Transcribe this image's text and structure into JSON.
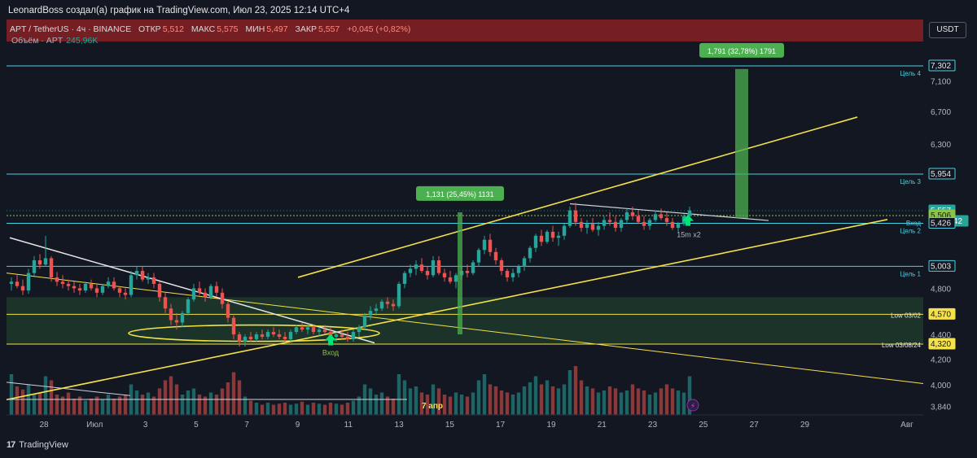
{
  "header": {
    "publisher_line": "LeonardBoss создал(а) график на TradingView.com, Июл 23, 2025 12:14 UTC+4"
  },
  "symbol": {
    "name": "APT / TetherUS · 4ч · BINANCE",
    "open_label": "ОТКР",
    "open": "5,512",
    "high_label": "МАКС",
    "high": "5,575",
    "low_label": "МИН",
    "low": "5,497",
    "close_label": "ЗАКР",
    "close": "5,557",
    "change": "+0,045 (+0,82%)"
  },
  "volume": {
    "label": "Объём · APT",
    "value": "245,96K"
  },
  "currency_button": "USDT",
  "footer": {
    "brand": "TradingView",
    "logo_glyph": "17"
  },
  "colors": {
    "background": "#131722",
    "bull": "#26a69a",
    "bear": "#ef5350",
    "header_band": "#7a1f24",
    "level_line": "#4dd0e1",
    "trend_yellow": "#f5e14a",
    "zone_green": "#1e3b2a",
    "target_box": "#4caf50"
  },
  "chart_data": {
    "type": "candlestick",
    "x_tick_labels": [
      "28",
      "Июл",
      "3",
      "5",
      "7",
      "9",
      "11",
      "13",
      "15",
      "17",
      "19",
      "21",
      "23",
      "25",
      "27",
      "29",
      "Авг"
    ],
    "y_tick_labels": [
      "7,100",
      "6,700",
      "6,300",
      "4,800",
      "4,400",
      "4,200",
      "4,000",
      "3,840"
    ],
    "ylim": [
      3.78,
      7.6
    ],
    "y_scale": "log",
    "price_labels": [
      {
        "value": "7,302",
        "style": "level"
      },
      {
        "value": "5,954",
        "style": "level"
      },
      {
        "value": "5,557",
        "style": "current"
      },
      {
        "value": "03:45:42",
        "style": "countdown"
      },
      {
        "value": "5,506",
        "style": "entry"
      },
      {
        "value": "5,426",
        "style": "level"
      },
      {
        "value": "5,003",
        "style": "level"
      },
      {
        "value": "4,570",
        "style": "low"
      },
      {
        "value": "4,320",
        "style": "low"
      }
    ],
    "level_names": [
      {
        "text": "Цель 4",
        "price": 7.302
      },
      {
        "text": "Цель 3",
        "price": 5.954
      },
      {
        "text": "Вход",
        "price": 5.506
      },
      {
        "text": "Цель 2",
        "price": 5.426
      },
      {
        "text": "Цель 1",
        "price": 5.003
      },
      {
        "text": "Low 03/02",
        "price": 4.57
      },
      {
        "text": "Low 03/08/24",
        "price": 4.32
      }
    ],
    "annotations": [
      {
        "text": "1,131 (25,45%) 1131",
        "kind": "measure"
      },
      {
        "text": "1,791 (32,78%) 1791",
        "kind": "measure"
      },
      {
        "text": "Вход",
        "kind": "arrow-label"
      },
      {
        "text": "15m x2",
        "kind": "arrow-label"
      },
      {
        "text": "7 апр",
        "kind": "date-marker"
      }
    ],
    "candles": [
      [
        4.84,
        4.9,
        4.78,
        4.86
      ],
      [
        4.86,
        4.92,
        4.8,
        4.82
      ],
      [
        4.82,
        4.88,
        4.74,
        4.78
      ],
      [
        4.78,
        4.98,
        4.75,
        4.94
      ],
      [
        4.94,
        5.1,
        4.9,
        5.06
      ],
      [
        5.06,
        5.12,
        4.98,
        5.02
      ],
      [
        5.02,
        5.3,
        5.0,
        5.08
      ],
      [
        5.08,
        5.1,
        4.86,
        4.9
      ],
      [
        4.9,
        4.95,
        4.82,
        4.86
      ],
      [
        4.86,
        4.92,
        4.8,
        4.84
      ],
      [
        4.84,
        4.88,
        4.78,
        4.82
      ],
      [
        4.82,
        4.86,
        4.76,
        4.8
      ],
      [
        4.8,
        4.84,
        4.74,
        4.78
      ],
      [
        4.78,
        4.86,
        4.76,
        4.84
      ],
      [
        4.84,
        4.88,
        4.78,
        4.8
      ],
      [
        4.8,
        4.84,
        4.72,
        4.76
      ],
      [
        4.76,
        4.84,
        4.74,
        4.82
      ],
      [
        4.82,
        4.9,
        4.8,
        4.86
      ],
      [
        4.86,
        4.9,
        4.78,
        4.8
      ],
      [
        4.8,
        4.82,
        4.72,
        4.76
      ],
      [
        4.76,
        4.8,
        4.7,
        4.74
      ],
      [
        4.74,
        4.96,
        4.72,
        4.92
      ],
      [
        4.92,
        5.0,
        4.88,
        4.96
      ],
      [
        4.96,
        5.0,
        4.86,
        4.88
      ],
      [
        4.88,
        4.94,
        4.84,
        4.9
      ],
      [
        4.9,
        4.94,
        4.8,
        4.84
      ],
      [
        4.84,
        4.86,
        4.68,
        4.72
      ],
      [
        4.72,
        4.76,
        4.58,
        4.62
      ],
      [
        4.62,
        4.66,
        4.48,
        4.52
      ],
      [
        4.52,
        4.58,
        4.44,
        4.5
      ],
      [
        4.5,
        4.6,
        4.46,
        4.58
      ],
      [
        4.58,
        4.72,
        4.56,
        4.7
      ],
      [
        4.7,
        4.84,
        4.68,
        4.8
      ],
      [
        4.8,
        4.86,
        4.74,
        4.76
      ],
      [
        4.76,
        4.8,
        4.68,
        4.72
      ],
      [
        4.72,
        4.84,
        4.7,
        4.82
      ],
      [
        4.82,
        4.86,
        4.72,
        4.76
      ],
      [
        4.76,
        4.8,
        4.62,
        4.66
      ],
      [
        4.66,
        4.68,
        4.5,
        4.54
      ],
      [
        4.54,
        4.56,
        4.36,
        4.4
      ],
      [
        4.4,
        4.42,
        4.3,
        4.34
      ],
      [
        4.34,
        4.4,
        4.3,
        4.38
      ],
      [
        4.38,
        4.42,
        4.34,
        4.36
      ],
      [
        4.36,
        4.42,
        4.34,
        4.4
      ],
      [
        4.4,
        4.44,
        4.36,
        4.38
      ],
      [
        4.38,
        4.44,
        4.36,
        4.42
      ],
      [
        4.42,
        4.46,
        4.38,
        4.4
      ],
      [
        4.4,
        4.44,
        4.36,
        4.38
      ],
      [
        4.38,
        4.42,
        4.34,
        4.36
      ],
      [
        4.36,
        4.44,
        4.34,
        4.42
      ],
      [
        4.42,
        4.48,
        4.4,
        4.46
      ],
      [
        4.46,
        4.5,
        4.42,
        4.44
      ],
      [
        4.44,
        4.48,
        4.4,
        4.46
      ],
      [
        4.46,
        4.48,
        4.4,
        4.42
      ],
      [
        4.42,
        4.46,
        4.38,
        4.44
      ],
      [
        4.44,
        4.48,
        4.4,
        4.42
      ],
      [
        4.42,
        4.46,
        4.36,
        4.38
      ],
      [
        4.38,
        4.42,
        4.34,
        4.4
      ],
      [
        4.4,
        4.44,
        4.36,
        4.38
      ],
      [
        4.38,
        4.42,
        4.34,
        4.36
      ],
      [
        4.36,
        4.44,
        4.34,
        4.42
      ],
      [
        4.42,
        4.48,
        4.38,
        4.46
      ],
      [
        4.46,
        4.58,
        4.44,
        4.56
      ],
      [
        4.56,
        4.64,
        4.52,
        4.6
      ],
      [
        4.6,
        4.66,
        4.56,
        4.62
      ],
      [
        4.62,
        4.7,
        4.6,
        4.68
      ],
      [
        4.68,
        4.72,
        4.62,
        4.66
      ],
      [
        4.66,
        4.7,
        4.6,
        4.64
      ],
      [
        4.64,
        4.86,
        4.62,
        4.84
      ],
      [
        4.84,
        4.96,
        4.8,
        4.94
      ],
      [
        4.94,
        5.02,
        4.9,
        4.98
      ],
      [
        4.98,
        5.06,
        4.92,
        5.02
      ],
      [
        5.02,
        5.08,
        4.94,
        4.96
      ],
      [
        4.96,
        5.0,
        4.88,
        4.92
      ],
      [
        4.92,
        5.1,
        4.9,
        5.06
      ],
      [
        5.06,
        5.1,
        4.92,
        4.94
      ],
      [
        4.94,
        4.98,
        4.86,
        4.9
      ],
      [
        4.9,
        4.96,
        4.84,
        4.86
      ],
      [
        4.86,
        4.94,
        4.8,
        4.92
      ],
      [
        4.92,
        5.0,
        4.88,
        4.96
      ],
      [
        4.96,
        5.02,
        4.9,
        4.94
      ],
      [
        4.94,
        5.06,
        4.92,
        5.04
      ],
      [
        5.04,
        5.18,
        5.0,
        5.16
      ],
      [
        5.16,
        5.3,
        5.12,
        5.26
      ],
      [
        5.26,
        5.32,
        5.1,
        5.14
      ],
      [
        5.14,
        5.18,
        5.02,
        5.06
      ],
      [
        5.06,
        5.08,
        4.92,
        4.96
      ],
      [
        4.96,
        4.98,
        4.86,
        4.9
      ],
      [
        4.9,
        4.98,
        4.86,
        4.94
      ],
      [
        4.94,
        5.02,
        4.9,
        5.0
      ],
      [
        5.0,
        5.1,
        4.96,
        5.08
      ],
      [
        5.08,
        5.2,
        5.04,
        5.18
      ],
      [
        5.18,
        5.32,
        5.14,
        5.3
      ],
      [
        5.3,
        5.36,
        5.2,
        5.24
      ],
      [
        5.24,
        5.36,
        5.22,
        5.34
      ],
      [
        5.34,
        5.4,
        5.24,
        5.28
      ],
      [
        5.28,
        5.34,
        5.2,
        5.3
      ],
      [
        5.3,
        5.42,
        5.26,
        5.4
      ],
      [
        5.4,
        5.6,
        5.38,
        5.56
      ],
      [
        5.56,
        5.64,
        5.4,
        5.44
      ],
      [
        5.44,
        5.48,
        5.34,
        5.38
      ],
      [
        5.38,
        5.46,
        5.32,
        5.42
      ],
      [
        5.42,
        5.48,
        5.34,
        5.36
      ],
      [
        5.36,
        5.44,
        5.3,
        5.4
      ],
      [
        5.4,
        5.5,
        5.36,
        5.46
      ],
      [
        5.46,
        5.54,
        5.4,
        5.44
      ],
      [
        5.44,
        5.5,
        5.34,
        5.38
      ],
      [
        5.38,
        5.48,
        5.34,
        5.46
      ],
      [
        5.46,
        5.58,
        5.42,
        5.54
      ],
      [
        5.54,
        5.6,
        5.46,
        5.5
      ],
      [
        5.5,
        5.56,
        5.42,
        5.44
      ],
      [
        5.44,
        5.5,
        5.36,
        5.4
      ],
      [
        5.4,
        5.48,
        5.36,
        5.46
      ],
      [
        5.46,
        5.56,
        5.44,
        5.52
      ],
      [
        5.52,
        5.58,
        5.46,
        5.48
      ],
      [
        5.48,
        5.54,
        5.4,
        5.44
      ],
      [
        5.44,
        5.48,
        5.36,
        5.38
      ],
      [
        5.38,
        5.44,
        5.34,
        5.42
      ],
      [
        5.42,
        5.52,
        5.4,
        5.5
      ],
      [
        5.5,
        5.6,
        5.48,
        5.56
      ]
    ],
    "volumes": [
      0.4,
      0.28,
      0.25,
      0.3,
      0.2,
      0.22,
      0.38,
      0.34,
      0.2,
      0.18,
      0.22,
      0.16,
      0.18,
      0.14,
      0.16,
      0.18,
      0.15,
      0.2,
      0.16,
      0.18,
      0.2,
      0.3,
      0.24,
      0.2,
      0.22,
      0.18,
      0.26,
      0.34,
      0.38,
      0.3,
      0.2,
      0.24,
      0.26,
      0.2,
      0.18,
      0.22,
      0.2,
      0.26,
      0.32,
      0.42,
      0.34,
      0.18,
      0.14,
      0.12,
      0.1,
      0.12,
      0.1,
      0.11,
      0.12,
      0.1,
      0.11,
      0.13,
      0.1,
      0.12,
      0.11,
      0.1,
      0.12,
      0.11,
      0.1,
      0.12,
      0.14,
      0.18,
      0.3,
      0.26,
      0.2,
      0.22,
      0.18,
      0.16,
      0.4,
      0.34,
      0.26,
      0.28,
      0.22,
      0.2,
      0.3,
      0.26,
      0.2,
      0.18,
      0.22,
      0.2,
      0.18,
      0.22,
      0.34,
      0.4,
      0.3,
      0.28,
      0.24,
      0.22,
      0.2,
      0.22,
      0.28,
      0.32,
      0.38,
      0.3,
      0.34,
      0.28,
      0.26,
      0.3,
      0.44,
      0.48,
      0.34,
      0.28,
      0.26,
      0.22,
      0.24,
      0.28,
      0.26,
      0.22,
      0.24,
      0.3,
      0.26,
      0.24,
      0.2,
      0.22,
      0.26,
      0.3,
      0.26,
      0.24,
      0.22,
      0.38
    ]
  }
}
